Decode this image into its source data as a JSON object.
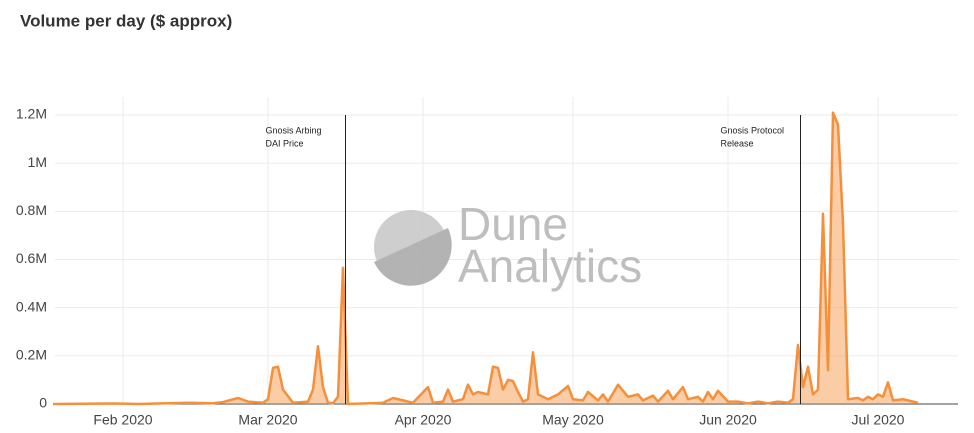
{
  "chart_data": {
    "type": "area",
    "title": "Volume per day ($ approx)",
    "watermark": [
      "Dune",
      "Analytics"
    ],
    "color": "#f4903c",
    "grid": true,
    "xlim": [
      16,
      199
    ],
    "ylim": [
      0,
      1200000
    ],
    "xticks": [
      {
        "value": 32,
        "label": "Feb 2020"
      },
      {
        "value": 61,
        "label": "Mar 2020"
      },
      {
        "value": 92,
        "label": "Apr 2020"
      },
      {
        "value": 122,
        "label": "May 2020"
      },
      {
        "value": 153,
        "label": "Jun 2020"
      },
      {
        "value": 183,
        "label": "Jul 2020"
      }
    ],
    "yticks": [
      0,
      {
        "value": 200000,
        "label": "0.2M"
      },
      {
        "value": 400000,
        "label": "0.4M"
      },
      {
        "value": 600000,
        "label": "0.6M"
      },
      {
        "value": 800000,
        "label": "0.8M"
      },
      {
        "value": 1000000,
        "label": "1M"
      },
      {
        "value": 1200000,
        "label": "1.2M"
      }
    ],
    "annotations": [
      {
        "x": 76.5,
        "text": [
          "Gnosis Arbing",
          "DAI Price"
        ]
      },
      {
        "x": 167.5,
        "text": [
          "Gnosis Protocol",
          "Release"
        ]
      }
    ],
    "x": [
      18,
      30,
      35,
      45,
      50,
      52,
      55,
      57,
      60,
      61,
      62,
      63,
      64,
      66,
      69,
      70,
      71,
      72,
      73,
      74,
      75,
      76,
      77,
      80,
      84,
      86,
      88,
      90,
      93,
      94,
      96,
      97,
      98,
      100,
      101,
      102,
      103,
      105,
      106,
      107,
      108,
      109,
      110,
      111,
      112,
      113,
      114,
      115,
      117,
      119,
      121,
      122,
      124,
      125,
      127,
      128,
      129,
      131,
      133,
      135,
      136,
      138,
      139,
      141,
      142,
      144,
      145,
      147,
      148,
      149,
      150,
      151,
      153,
      155,
      157,
      159,
      161,
      163,
      165,
      166,
      167,
      168,
      169,
      170,
      171,
      172,
      173,
      174,
      175,
      176,
      177,
      179,
      180,
      181,
      182,
      183,
      184,
      185,
      186,
      188,
      190,
      191
    ],
    "values": [
      0,
      2000,
      0,
      5000,
      3000,
      8000,
      25000,
      10000,
      5000,
      20000,
      150000,
      155000,
      60000,
      5000,
      10000,
      60000,
      240000,
      70000,
      5000,
      3000,
      30000,
      565000,
      0,
      2000,
      5000,
      25000,
      15000,
      5000,
      70000,
      5000,
      10000,
      60000,
      10000,
      20000,
      80000,
      40000,
      50000,
      40000,
      155000,
      150000,
      60000,
      100000,
      95000,
      50000,
      10000,
      20000,
      215000,
      40000,
      20000,
      40000,
      75000,
      20000,
      15000,
      50000,
      15000,
      40000,
      10000,
      80000,
      30000,
      40000,
      15000,
      35000,
      10000,
      55000,
      20000,
      70000,
      20000,
      30000,
      10000,
      50000,
      20000,
      55000,
      10000,
      10000,
      2000,
      10000,
      3000,
      10000,
      5000,
      20000,
      245000,
      70000,
      155000,
      40000,
      60000,
      790000,
      140000,
      1210000,
      1160000,
      750000,
      20000,
      25000,
      15000,
      30000,
      20000,
      40000,
      30000,
      90000,
      15000,
      20000,
      10000,
      5000
    ]
  }
}
